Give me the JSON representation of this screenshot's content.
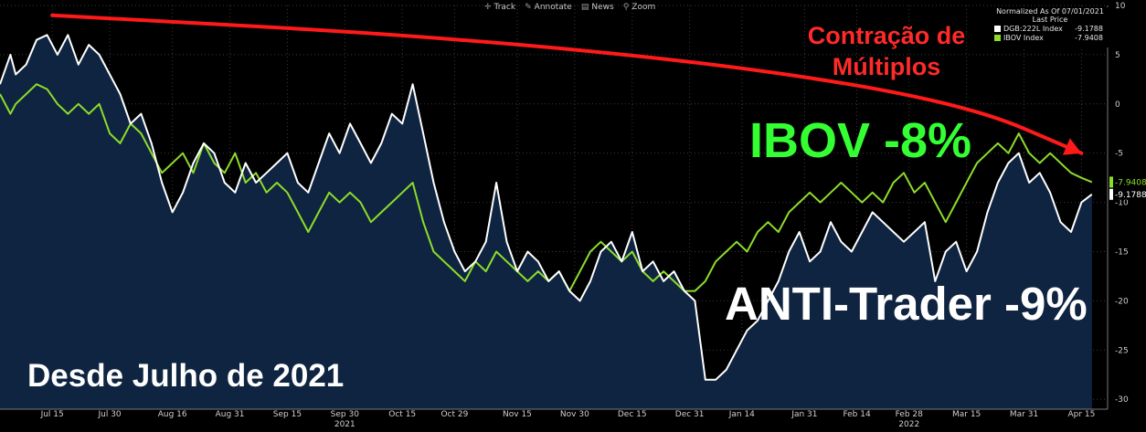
{
  "toolbar": {
    "track": "Track",
    "annotate": "Annotate",
    "news": "News",
    "zoom": "Zoom"
  },
  "legend": {
    "header": "Normalized As Of 07/01/2021",
    "subheader": "Last Price",
    "items": [
      {
        "name": "DGB:222L Index",
        "value": "-9.1788",
        "color": "#ffffff"
      },
      {
        "name": "IBOV Index",
        "value": "-7.9408",
        "color": "#8ddc2a"
      }
    ]
  },
  "annotations": {
    "contracao_line1": "Contração de",
    "contracao_line2": "Múltiplos",
    "ibov": "IBOV -8%",
    "anti": "ANTI-Trader -9%",
    "desde": "Desde Julho de 2021"
  },
  "chart_data": {
    "type": "line",
    "ylim": [
      -31,
      10
    ],
    "y_ticks": [
      10,
      5,
      0,
      -5,
      -10,
      -15,
      -20,
      -25,
      -30
    ],
    "x_ticks": [
      {
        "label": "Jul 15",
        "x": 10
      },
      {
        "label": "Jul 30",
        "x": 21
      },
      {
        "label": "Aug 16",
        "x": 33
      },
      {
        "label": "Aug 31",
        "x": 44
      },
      {
        "label": "Sep 15",
        "x": 55
      },
      {
        "label": "Sep 30",
        "x": 66
      },
      {
        "label": "Oct 15",
        "x": 77
      },
      {
        "label": "Oct 29",
        "x": 87
      },
      {
        "label": "Nov 15",
        "x": 99
      },
      {
        "label": "Nov 30",
        "x": 110
      },
      {
        "label": "Dec 15",
        "x": 121
      },
      {
        "label": "Dec 31",
        "x": 132
      },
      {
        "label": "Jan 14",
        "x": 142
      },
      {
        "label": "Jan 31",
        "x": 154
      },
      {
        "label": "Feb 14",
        "x": 164
      },
      {
        "label": "Feb 28",
        "x": 174
      },
      {
        "label": "Mar 15",
        "x": 185
      },
      {
        "label": "Mar 31",
        "x": 196
      },
      {
        "label": "Apr 15",
        "x": 207
      }
    ],
    "year_labels": [
      {
        "label": "2021",
        "x": 66
      },
      {
        "label": "2022",
        "x": 174
      }
    ],
    "x_range": [
      0,
      212
    ],
    "series": [
      {
        "name": "DGB:222L Index",
        "color": "#ffffff",
        "last_label": "-9.1788",
        "points": [
          [
            0,
            2
          ],
          [
            2,
            5
          ],
          [
            3,
            3
          ],
          [
            5,
            4
          ],
          [
            7,
            6.5
          ],
          [
            9,
            7
          ],
          [
            11,
            5
          ],
          [
            13,
            7
          ],
          [
            15,
            4
          ],
          [
            17,
            6
          ],
          [
            19,
            5
          ],
          [
            21,
            3
          ],
          [
            23,
            1
          ],
          [
            25,
            -2
          ],
          [
            27,
            -1
          ],
          [
            29,
            -4
          ],
          [
            31,
            -8
          ],
          [
            33,
            -11
          ],
          [
            35,
            -9
          ],
          [
            37,
            -6
          ],
          [
            39,
            -4
          ],
          [
            41,
            -5
          ],
          [
            43,
            -8
          ],
          [
            45,
            -9
          ],
          [
            47,
            -6
          ],
          [
            49,
            -8
          ],
          [
            51,
            -7
          ],
          [
            53,
            -6
          ],
          [
            55,
            -5
          ],
          [
            57,
            -8
          ],
          [
            59,
            -9
          ],
          [
            61,
            -6
          ],
          [
            63,
            -3
          ],
          [
            65,
            -5
          ],
          [
            67,
            -2
          ],
          [
            69,
            -4
          ],
          [
            71,
            -6
          ],
          [
            73,
            -4
          ],
          [
            75,
            -1
          ],
          [
            77,
            -2
          ],
          [
            79,
            2
          ],
          [
            81,
            -3
          ],
          [
            83,
            -8
          ],
          [
            85,
            -12
          ],
          [
            87,
            -15
          ],
          [
            89,
            -17
          ],
          [
            91,
            -16
          ],
          [
            93,
            -14
          ],
          [
            95,
            -8
          ],
          [
            97,
            -14
          ],
          [
            99,
            -17
          ],
          [
            101,
            -15
          ],
          [
            103,
            -16
          ],
          [
            105,
            -18
          ],
          [
            107,
            -17
          ],
          [
            109,
            -19
          ],
          [
            111,
            -20
          ],
          [
            113,
            -18
          ],
          [
            115,
            -15
          ],
          [
            117,
            -14
          ],
          [
            119,
            -16
          ],
          [
            121,
            -13
          ],
          [
            123,
            -17
          ],
          [
            125,
            -16
          ],
          [
            127,
            -18
          ],
          [
            129,
            -17
          ],
          [
            131,
            -19
          ],
          [
            133,
            -20
          ],
          [
            135,
            -28
          ],
          [
            137,
            -28
          ],
          [
            139,
            -27
          ],
          [
            141,
            -25
          ],
          [
            143,
            -23
          ],
          [
            145,
            -22
          ],
          [
            147,
            -20
          ],
          [
            149,
            -18
          ],
          [
            151,
            -15
          ],
          [
            153,
            -13
          ],
          [
            155,
            -16
          ],
          [
            157,
            -15
          ],
          [
            159,
            -12
          ],
          [
            161,
            -14
          ],
          [
            163,
            -15
          ],
          [
            165,
            -13
          ],
          [
            167,
            -11
          ],
          [
            169,
            -12
          ],
          [
            171,
            -13
          ],
          [
            173,
            -14
          ],
          [
            175,
            -13
          ],
          [
            177,
            -12
          ],
          [
            179,
            -18
          ],
          [
            181,
            -15
          ],
          [
            183,
            -14
          ],
          [
            185,
            -17
          ],
          [
            187,
            -15
          ],
          [
            189,
            -11
          ],
          [
            191,
            -8
          ],
          [
            193,
            -6
          ],
          [
            195,
            -5
          ],
          [
            197,
            -8
          ],
          [
            199,
            -7
          ],
          [
            201,
            -9
          ],
          [
            203,
            -12
          ],
          [
            205,
            -13
          ],
          [
            207,
            -10
          ],
          [
            209,
            -9.18
          ]
        ]
      },
      {
        "name": "IBOV Index",
        "color": "#8ddc2a",
        "last_label": "-7.9408",
        "points": [
          [
            0,
            1
          ],
          [
            2,
            -1
          ],
          [
            3,
            0
          ],
          [
            5,
            1
          ],
          [
            7,
            2
          ],
          [
            9,
            1.5
          ],
          [
            11,
            0
          ],
          [
            13,
            -1
          ],
          [
            15,
            0
          ],
          [
            17,
            -1
          ],
          [
            19,
            0
          ],
          [
            21,
            -3
          ],
          [
            23,
            -4
          ],
          [
            25,
            -2
          ],
          [
            27,
            -3
          ],
          [
            29,
            -5
          ],
          [
            31,
            -7
          ],
          [
            33,
            -6
          ],
          [
            35,
            -5
          ],
          [
            37,
            -7
          ],
          [
            39,
            -4
          ],
          [
            41,
            -6
          ],
          [
            43,
            -7
          ],
          [
            45,
            -5
          ],
          [
            47,
            -8
          ],
          [
            49,
            -7
          ],
          [
            51,
            -9
          ],
          [
            53,
            -8
          ],
          [
            55,
            -9
          ],
          [
            57,
            -11
          ],
          [
            59,
            -13
          ],
          [
            61,
            -11
          ],
          [
            63,
            -9
          ],
          [
            65,
            -10
          ],
          [
            67,
            -9
          ],
          [
            69,
            -10
          ],
          [
            71,
            -12
          ],
          [
            73,
            -11
          ],
          [
            75,
            -10
          ],
          [
            77,
            -9
          ],
          [
            79,
            -8
          ],
          [
            81,
            -12
          ],
          [
            83,
            -15
          ],
          [
            85,
            -16
          ],
          [
            87,
            -17
          ],
          [
            89,
            -18
          ],
          [
            91,
            -16
          ],
          [
            93,
            -17
          ],
          [
            95,
            -15
          ],
          [
            97,
            -16
          ],
          [
            99,
            -17
          ],
          [
            101,
            -18
          ],
          [
            103,
            -17
          ],
          [
            105,
            -18
          ],
          [
            107,
            -17
          ],
          [
            109,
            -19
          ],
          [
            111,
            -17
          ],
          [
            113,
            -15
          ],
          [
            115,
            -14
          ],
          [
            117,
            -15
          ],
          [
            119,
            -16
          ],
          [
            121,
            -15
          ],
          [
            123,
            -17
          ],
          [
            125,
            -18
          ],
          [
            127,
            -17
          ],
          [
            129,
            -18
          ],
          [
            131,
            -19
          ],
          [
            133,
            -19
          ],
          [
            135,
            -18
          ],
          [
            137,
            -16
          ],
          [
            139,
            -15
          ],
          [
            141,
            -14
          ],
          [
            143,
            -15
          ],
          [
            145,
            -13
          ],
          [
            147,
            -12
          ],
          [
            149,
            -13
          ],
          [
            151,
            -11
          ],
          [
            153,
            -10
          ],
          [
            155,
            -9
          ],
          [
            157,
            -10
          ],
          [
            159,
            -9
          ],
          [
            161,
            -8
          ],
          [
            163,
            -9
          ],
          [
            165,
            -10
          ],
          [
            167,
            -9
          ],
          [
            169,
            -10
          ],
          [
            171,
            -8
          ],
          [
            173,
            -7
          ],
          [
            175,
            -9
          ],
          [
            177,
            -8
          ],
          [
            179,
            -10
          ],
          [
            181,
            -12
          ],
          [
            183,
            -10
          ],
          [
            185,
            -8
          ],
          [
            187,
            -6
          ],
          [
            189,
            -5
          ],
          [
            191,
            -4
          ],
          [
            193,
            -5
          ],
          [
            195,
            -3
          ],
          [
            197,
            -5
          ],
          [
            199,
            -6
          ],
          [
            201,
            -5
          ],
          [
            203,
            -6
          ],
          [
            205,
            -7
          ],
          [
            207,
            -7.5
          ],
          [
            209,
            -7.94
          ]
        ]
      }
    ],
    "trend_arrow": {
      "color": "#ff1a1a",
      "points": [
        [
          10,
          9
        ],
        [
          80,
          7
        ],
        [
          140,
          4
        ],
        [
          185,
          0
        ],
        [
          207,
          -5
        ]
      ]
    }
  }
}
